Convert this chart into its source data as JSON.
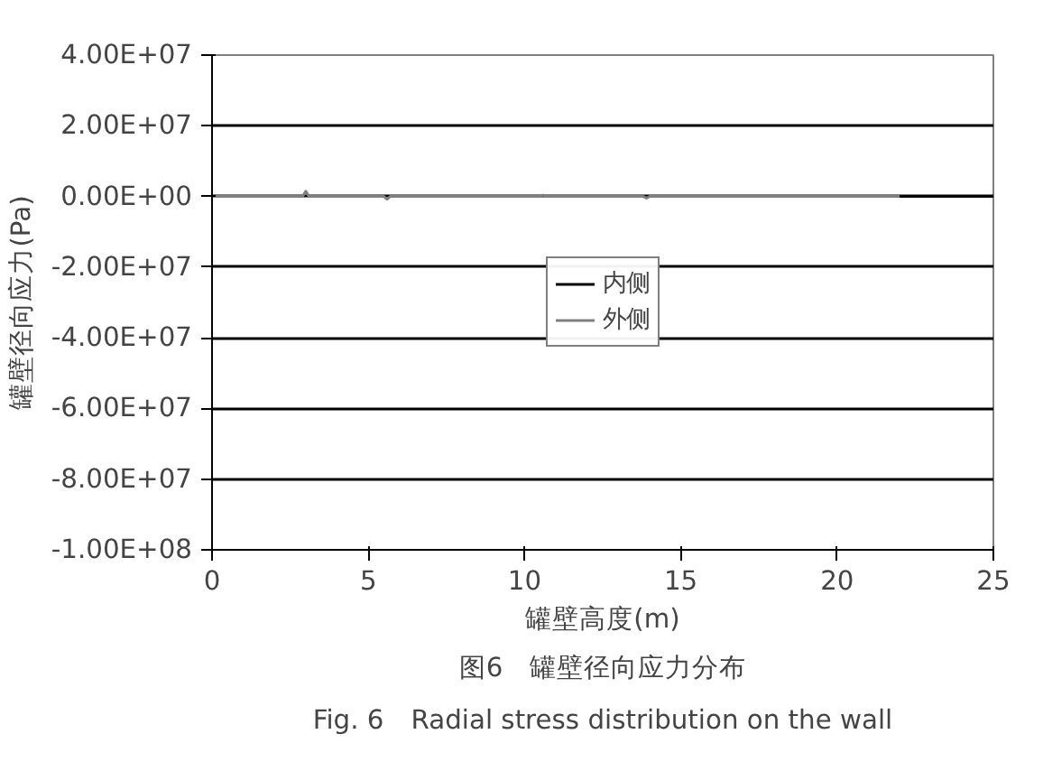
{
  "chart_data": {
    "type": "line",
    "title": "图6　罐壁径向应力分布",
    "subtitle": "Fig. 6　Radial stress distribution on the wall",
    "xlabel": "罐壁高度(m)",
    "ylabel": "罐壁径向应力(Pa)",
    "xlim": [
      0,
      25
    ],
    "xticks": [
      0,
      5,
      10,
      15,
      20,
      25
    ],
    "ylim": [
      -100000000,
      40000000
    ],
    "yticks": [
      {
        "value": 40000000,
        "label": "4.00E+07"
      },
      {
        "value": 20000000,
        "label": "2.00E+07"
      },
      {
        "value": 0,
        "label": "0.00E+00"
      },
      {
        "value": -20000000,
        "label": "-2.00E+07"
      },
      {
        "value": -40000000,
        "label": "-4.00E+07"
      },
      {
        "value": -60000000,
        "label": "-6.00E+07"
      },
      {
        "value": -80000000,
        "label": "-8.00E+07"
      },
      {
        "value": -100000000,
        "label": "-1.00E+08"
      }
    ],
    "grid": "y",
    "legend": "center",
    "marker": "none",
    "line_style": "solid",
    "series": [
      {
        "name": "内侧",
        "color": "#000000",
        "x": [
          22,
          25
        ],
        "values": [
          0,
          0
        ]
      },
      {
        "name": "外侧",
        "color": "#808080",
        "x": [
          0,
          2.9,
          3.0,
          3.1,
          5.5,
          5.6,
          5.7,
          10.5,
          10.6,
          10.7,
          13.8,
          13.9,
          14,
          22
        ],
        "values": [
          0,
          0,
          1500000,
          0,
          0,
          -800000,
          0,
          0,
          400000,
          0,
          0,
          -500000,
          0,
          0
        ]
      }
    ]
  }
}
